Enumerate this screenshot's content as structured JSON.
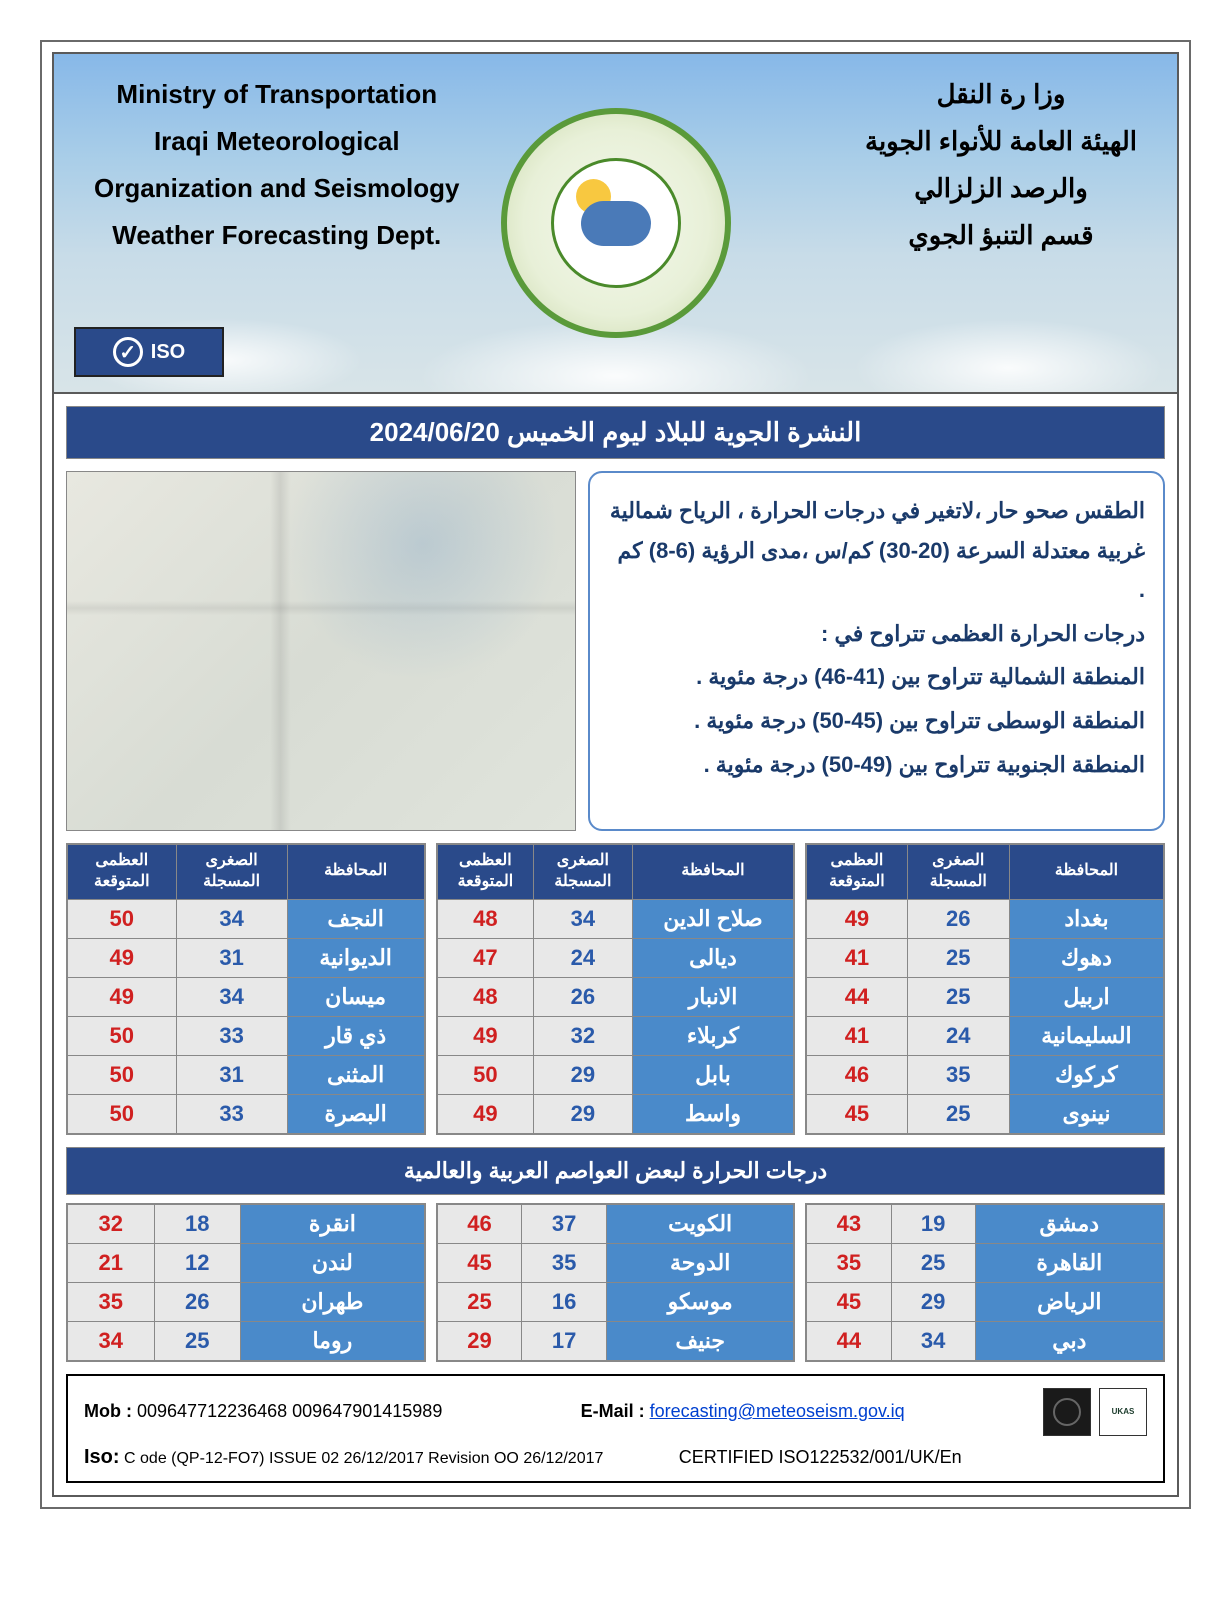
{
  "header": {
    "en": [
      "Ministry of Transportation",
      "Iraqi Meteorological",
      "Organization and Seismology",
      "Weather Forecasting Dept."
    ],
    "ar": [
      "وزا رة النقل",
      "الهيئة العامة للأنواء الجوية",
      "والرصد الزلزالي",
      "قسم التنبؤ الجوي"
    ],
    "iso_label": "ISO"
  },
  "bulletin_title": "النشرة الجوية للبلاد ليوم الخميس  2024/06/20",
  "summary": [
    "الطقس  صحو حار ،لاتغير في درجات الحرارة ، الرياح شمالية غربية معتدلة السرعة (20-30) كم/س  ،مدى الرؤية (6-8) كم .",
    "درجات الحرارة العظمى تتراوح في :",
    "المنطقة الشمالية تتراوح بين (41-46) درجة مئوية .",
    "المنطقة الوسطى تتراوح بين (45-50) درجة مئوية .",
    "المنطقة الجنوبية تتراوح بين (49-50) درجة مئوية ."
  ],
  "table_headers": {
    "city": "المحافظة",
    "low": "الصغرى\nالمسجلة",
    "high": "العظمى\nالمتوقعة"
  },
  "iraq_tables": [
    [
      {
        "city": "بغداد",
        "low": 26,
        "high": 49
      },
      {
        "city": "دهوك",
        "low": 25,
        "high": 41
      },
      {
        "city": "اربيل",
        "low": 25,
        "high": 44
      },
      {
        "city": "السليمانية",
        "low": 24,
        "high": 41
      },
      {
        "city": "كركوك",
        "low": 35,
        "high": 46
      },
      {
        "city": "نينوى",
        "low": 25,
        "high": 45
      }
    ],
    [
      {
        "city": "صلاح الدين",
        "low": 34,
        "high": 48
      },
      {
        "city": "ديالى",
        "low": 24,
        "high": 47
      },
      {
        "city": "الانبار",
        "low": 26,
        "high": 48
      },
      {
        "city": "كربلاء",
        "low": 32,
        "high": 49
      },
      {
        "city": "بابل",
        "low": 29,
        "high": 50
      },
      {
        "city": "واسط",
        "low": 29,
        "high": 49
      }
    ],
    [
      {
        "city": "النجف",
        "low": 34,
        "high": 50
      },
      {
        "city": "الديوانية",
        "low": 31,
        "high": 49
      },
      {
        "city": "ميسان",
        "low": 34,
        "high": 49
      },
      {
        "city": "ذي قار",
        "low": 33,
        "high": 50
      },
      {
        "city": "المثنى",
        "low": 31,
        "high": 50
      },
      {
        "city": "البصرة",
        "low": 33,
        "high": 50
      }
    ]
  ],
  "world_title": "درجات الحرارة لبعض العواصم العربية والعالمية",
  "world_tables": [
    [
      {
        "city": "دمشق",
        "low": 19,
        "high": 43
      },
      {
        "city": "القاهرة",
        "low": 25,
        "high": 35
      },
      {
        "city": "الرياض",
        "low": 29,
        "high": 45
      },
      {
        "city": "دبي",
        "low": 34,
        "high": 44
      }
    ],
    [
      {
        "city": "الكويت",
        "low": 37,
        "high": 46
      },
      {
        "city": "الدوحة",
        "low": 35,
        "high": 45
      },
      {
        "city": "موسكو",
        "low": 16,
        "high": 25
      },
      {
        "city": "جنيف",
        "low": 17,
        "high": 29
      }
    ],
    [
      {
        "city": "انقرة",
        "low": 18,
        "high": 32
      },
      {
        "city": "لندن",
        "low": 12,
        "high": 21
      },
      {
        "city": "طهران",
        "low": 26,
        "high": 35
      },
      {
        "city": "روما",
        "low": 25,
        "high": 34
      }
    ]
  ],
  "footer": {
    "mob_label": "Mob :",
    "mob": "009647712236468  009647901415989",
    "email_label": "E-Mail :",
    "email": "forecasting@meteoseism.gov.iq",
    "iso_label": "Iso:",
    "iso_line": "C ode (QP-12-FO7)  ISSUE  02  26/12/2017  Revision   OO  26/12/2017",
    "cert": "CERTIFIED ISO122532/001/UK/En"
  },
  "colors": {
    "header_bg": "#2a4a8a",
    "city_bg": "#4a8aca",
    "cell_bg": "#e8e8e8",
    "low_color": "#2a5aaa",
    "high_color": "#d02020",
    "border": "#888888"
  }
}
